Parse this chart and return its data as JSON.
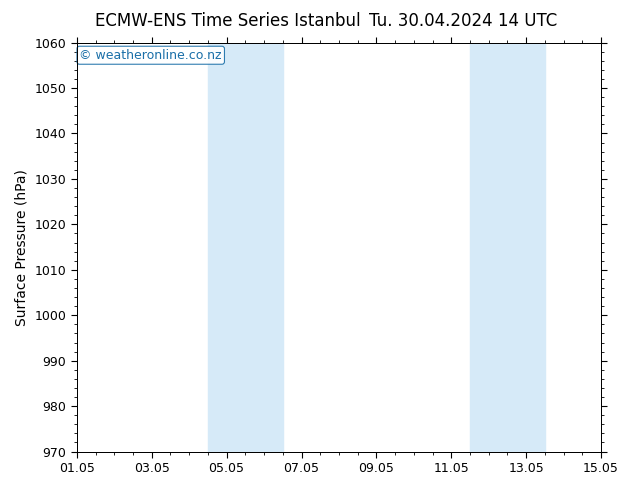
{
  "title_left": "ECMW-ENS Time Series Istanbul",
  "title_right": "Tu. 30.04.2024 14 UTC",
  "ylabel": "Surface Pressure (hPa)",
  "xlabel_ticks": [
    "01.05",
    "03.05",
    "05.05",
    "07.05",
    "09.05",
    "11.05",
    "13.05",
    "15.05"
  ],
  "x_tick_positions": [
    0,
    2,
    4,
    6,
    8,
    10,
    12,
    14
  ],
  "ylim": [
    970,
    1060
  ],
  "xlim": [
    0,
    14
  ],
  "yticks": [
    970,
    980,
    990,
    1000,
    1010,
    1020,
    1030,
    1040,
    1050,
    1060
  ],
  "bg_color": "#ffffff",
  "plot_bg_color": "#ffffff",
  "shaded_bands": [
    {
      "x_start": 3.5,
      "x_end": 5.5
    },
    {
      "x_start": 10.5,
      "x_end": 12.5
    }
  ],
  "shaded_color": "#d6eaf8",
  "watermark_text": "© weatheronline.co.nz",
  "watermark_color": "#1a6fa8",
  "title_fontsize": 12,
  "label_fontsize": 10,
  "tick_fontsize": 9,
  "watermark_fontsize": 9
}
